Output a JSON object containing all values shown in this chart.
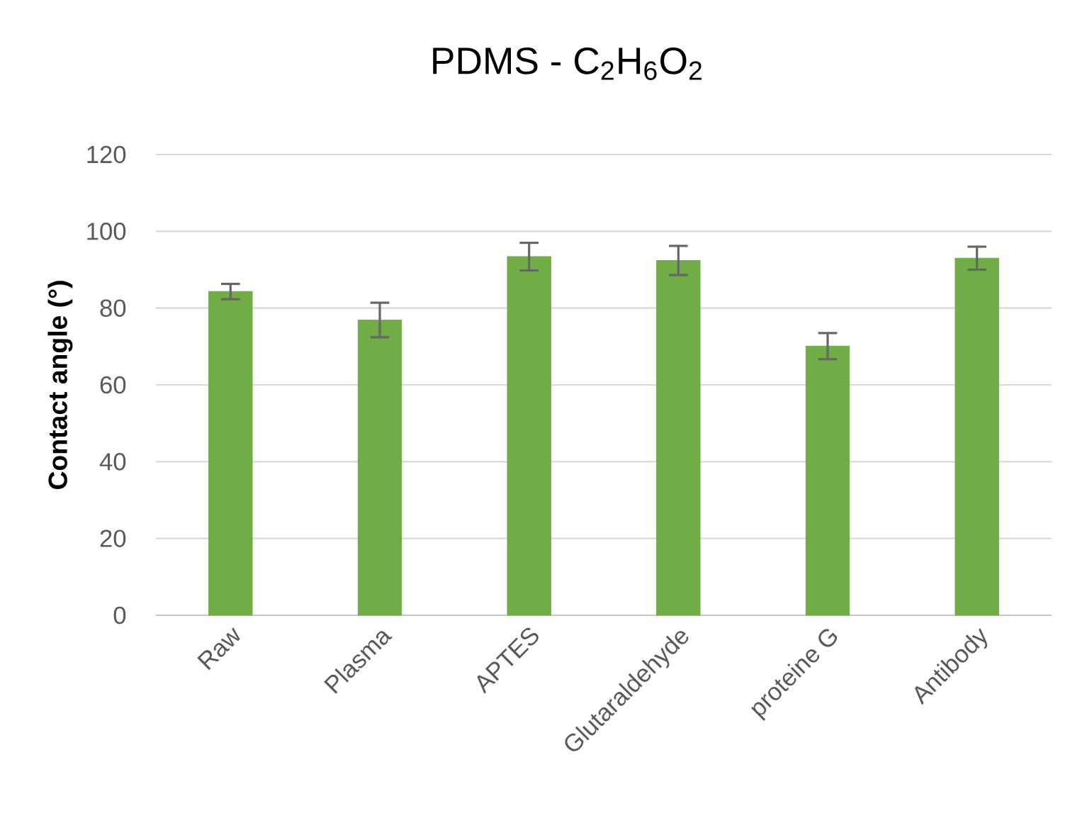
{
  "chart_data": {
    "type": "bar",
    "title": "PDMS - C$_{2}$H$_{6}$O$_{2}$",
    "ylabel": "Contact angle (°)",
    "categories": [
      "Raw",
      "Plasma",
      "APTES",
      "Glutaraldehyde",
      "proteine G",
      "Antibody"
    ],
    "values": [
      84.3,
      76.9,
      93.4,
      92.4,
      70.1,
      93.0
    ],
    "errors": [
      2.0,
      4.5,
      3.6,
      3.8,
      3.4,
      3.0
    ],
    "color": "#70ad47",
    "ylim": [
      0,
      120
    ],
    "yticks": [
      0,
      20,
      40,
      60,
      80,
      100,
      120
    ],
    "grid": "y"
  }
}
